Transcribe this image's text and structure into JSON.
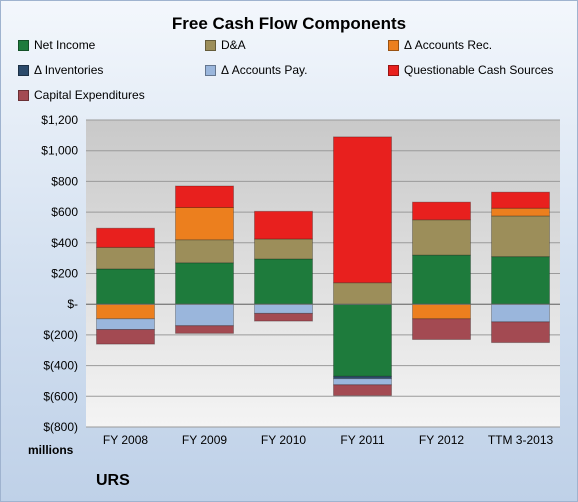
{
  "chart_data": {
    "type": "bar",
    "stacked": true,
    "title": "Free Cash Flow Components",
    "ylim": [
      -800,
      1200
    ],
    "yticks": [
      {
        "value": 1200,
        "label": "$1,200"
      },
      {
        "value": 1000,
        "label": "$1,000"
      },
      {
        "value": 800,
        "label": "$800"
      },
      {
        "value": 600,
        "label": "$600"
      },
      {
        "value": 400,
        "label": "$400"
      },
      {
        "value": 200,
        "label": "$200"
      },
      {
        "value": 0,
        "label": "$-"
      },
      {
        "value": -200,
        "label": "$(200)"
      },
      {
        "value": -400,
        "label": "$(400)"
      },
      {
        "value": -600,
        "label": "$(600)"
      },
      {
        "value": -800,
        "label": "$(800)"
      }
    ],
    "ylabel": "millions",
    "categories": [
      "FY 2008",
      "FY 2009",
      "FY 2010",
      "FY 2011",
      "FY 2012",
      "TTM 3-2013"
    ],
    "grid": true,
    "legend_position": "top",
    "series": [
      {
        "name": "Net Income",
        "color": "#1e7b3c",
        "values": [
          230,
          270,
          295,
          -470,
          320,
          310
        ]
      },
      {
        "name": "D&A",
        "color": "#9c8e5a",
        "values": [
          140,
          150,
          130,
          140,
          230,
          265
        ]
      },
      {
        "name": "Δ Accounts Rec.",
        "color": "#ec7f1e",
        "values": [
          -95,
          210,
          0,
          0,
          -95,
          50
        ]
      },
      {
        "name": "Δ Inventories",
        "color": "#2b4a6b",
        "values": [
          0,
          0,
          0,
          -15,
          0,
          0
        ]
      },
      {
        "name": "Δ Accounts Pay.",
        "color": "#9ab6dc",
        "values": [
          -70,
          -140,
          -60,
          -40,
          0,
          -115
        ]
      },
      {
        "name": "Questionable Cash Sources",
        "color": "#e8201e",
        "values": [
          125,
          140,
          180,
          950,
          115,
          105
        ]
      },
      {
        "name": "Capital Expenditures",
        "color": "#a34a52",
        "values": [
          -95,
          -50,
          -50,
          -70,
          -135,
          -135
        ]
      }
    ]
  },
  "company": "URS"
}
